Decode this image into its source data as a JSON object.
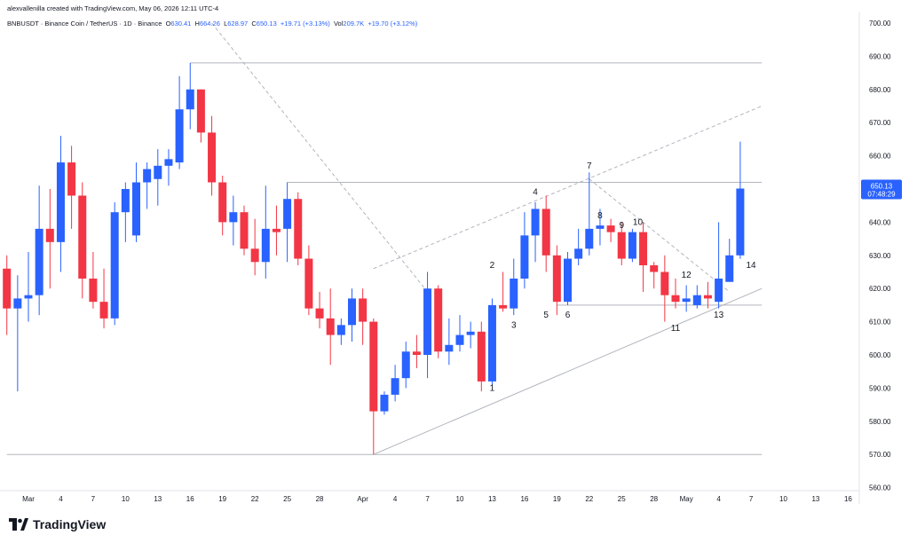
{
  "header": {
    "creator_text": "alexvallenilla created with TradingView.com, May 06, 2026 12:11 UTC-4",
    "symbol": "BNBUSDT · Binance Coin / TetherUS · 1D · Binance",
    "open_label": "O",
    "open_value": "630.41",
    "high_label": "H",
    "high_value": "664.26",
    "low_label": "L",
    "low_value": "628.97",
    "close_label": "C",
    "close_value": "650.13",
    "change": "+19.71 (+3.13%)",
    "vol_label": "Vol",
    "vol_value": "209.7K",
    "vol_change": "+19.70 (+3.12%)"
  },
  "footer": {
    "brand": "TradingView"
  },
  "colors": {
    "up": "#2962ff",
    "down": "#f23645",
    "price_tag": "#2962ff",
    "grid_line": "#b2b5be",
    "text": "#131722"
  },
  "chart_data": {
    "type": "candlestick",
    "y_axis": {
      "min": 560,
      "max": 700,
      "step": 10,
      "side": "right",
      "ticks": [
        "700.00",
        "690.00",
        "680.00",
        "670.00",
        "660.00",
        "650.00",
        "640.00",
        "630.00",
        "620.00",
        "610.00",
        "600.00",
        "590.00",
        "580.00",
        "570.00",
        "560.00"
      ]
    },
    "x_axis": {
      "ticks": [
        {
          "label": "Mar",
          "d": 0
        },
        {
          "label": "4",
          "d": 3
        },
        {
          "label": "7",
          "d": 6
        },
        {
          "label": "10",
          "d": 9
        },
        {
          "label": "13",
          "d": 12
        },
        {
          "label": "16",
          "d": 15
        },
        {
          "label": "19",
          "d": 18
        },
        {
          "label": "22",
          "d": 21
        },
        {
          "label": "25",
          "d": 24
        },
        {
          "label": "28",
          "d": 27
        },
        {
          "label": "Apr",
          "d": 31
        },
        {
          "label": "4",
          "d": 34
        },
        {
          "label": "7",
          "d": 37
        },
        {
          "label": "10",
          "d": 40
        },
        {
          "label": "13",
          "d": 43
        },
        {
          "label": "16",
          "d": 46
        },
        {
          "label": "19",
          "d": 49
        },
        {
          "label": "22",
          "d": 52
        },
        {
          "label": "25",
          "d": 55
        },
        {
          "label": "28",
          "d": 58
        },
        {
          "label": "May",
          "d": 61
        },
        {
          "label": "4",
          "d": 64
        },
        {
          "label": "7",
          "d": 67
        },
        {
          "label": "10",
          "d": 70
        },
        {
          "label": "13",
          "d": 73
        },
        {
          "label": "16",
          "d": 76
        }
      ]
    },
    "last_price": {
      "value": "650.13",
      "countdown": "07:48:29"
    },
    "candles": [
      {
        "d": -2,
        "o": 626,
        "h": 630,
        "l": 606,
        "c": 614
      },
      {
        "d": -1,
        "o": 614,
        "h": 624,
        "l": 589,
        "c": 617
      },
      {
        "d": 0,
        "o": 617,
        "h": 631,
        "l": 610,
        "c": 618
      },
      {
        "d": 1,
        "o": 618,
        "h": 651,
        "l": 612,
        "c": 638
      },
      {
        "d": 2,
        "o": 638,
        "h": 650,
        "l": 620,
        "c": 634
      },
      {
        "d": 3,
        "o": 634,
        "h": 666,
        "l": 625,
        "c": 658
      },
      {
        "d": 4,
        "o": 658,
        "h": 663,
        "l": 638,
        "c": 648
      },
      {
        "d": 5,
        "o": 648,
        "h": 652,
        "l": 617,
        "c": 623
      },
      {
        "d": 6,
        "o": 623,
        "h": 631,
        "l": 614,
        "c": 616
      },
      {
        "d": 7,
        "o": 616,
        "h": 626,
        "l": 608,
        "c": 611
      },
      {
        "d": 8,
        "o": 611,
        "h": 646,
        "l": 609,
        "c": 643
      },
      {
        "d": 9,
        "o": 643,
        "h": 652,
        "l": 634,
        "c": 650
      },
      {
        "d": 10,
        "o": 636,
        "h": 658,
        "l": 634,
        "c": 652
      },
      {
        "d": 11,
        "o": 652,
        "h": 658,
        "l": 644,
        "c": 656
      },
      {
        "d": 12,
        "o": 653,
        "h": 662,
        "l": 645,
        "c": 657
      },
      {
        "d": 13,
        "o": 657,
        "h": 662,
        "l": 651,
        "c": 659
      },
      {
        "d": 14,
        "o": 658,
        "h": 684,
        "l": 656,
        "c": 674
      },
      {
        "d": 15,
        "o": 674,
        "h": 688,
        "l": 668,
        "c": 680
      },
      {
        "d": 16,
        "o": 680,
        "h": 680,
        "l": 664,
        "c": 667
      },
      {
        "d": 17,
        "o": 667,
        "h": 672,
        "l": 648,
        "c": 652
      },
      {
        "d": 18,
        "o": 652,
        "h": 654,
        "l": 636,
        "c": 640
      },
      {
        "d": 19,
        "o": 640,
        "h": 648,
        "l": 633,
        "c": 643
      },
      {
        "d": 20,
        "o": 643,
        "h": 645,
        "l": 630,
        "c": 632
      },
      {
        "d": 21,
        "o": 632,
        "h": 641,
        "l": 624,
        "c": 628
      },
      {
        "d": 22,
        "o": 628,
        "h": 651,
        "l": 623,
        "c": 638
      },
      {
        "d": 23,
        "o": 638,
        "h": 645,
        "l": 630,
        "c": 637
      },
      {
        "d": 24,
        "o": 638,
        "h": 652,
        "l": 628,
        "c": 647
      },
      {
        "d": 25,
        "o": 647,
        "h": 649,
        "l": 627,
        "c": 629
      },
      {
        "d": 26,
        "o": 629,
        "h": 633,
        "l": 612,
        "c": 614
      },
      {
        "d": 27,
        "o": 614,
        "h": 619,
        "l": 608,
        "c": 611
      },
      {
        "d": 28,
        "o": 611,
        "h": 620,
        "l": 597,
        "c": 606
      },
      {
        "d": 29,
        "o": 606,
        "h": 611,
        "l": 603,
        "c": 609
      },
      {
        "d": 30,
        "o": 609,
        "h": 620,
        "l": 604,
        "c": 617
      },
      {
        "d": 31,
        "o": 617,
        "h": 620,
        "l": 603,
        "c": 610
      },
      {
        "d": 32,
        "o": 610,
        "h": 611,
        "l": 570,
        "c": 583
      },
      {
        "d": 33,
        "o": 583,
        "h": 589,
        "l": 582,
        "c": 588
      },
      {
        "d": 34,
        "o": 588,
        "h": 597,
        "l": 586,
        "c": 593
      },
      {
        "d": 35,
        "o": 593,
        "h": 604,
        "l": 590,
        "c": 601
      },
      {
        "d": 36,
        "o": 601,
        "h": 606,
        "l": 596,
        "c": 600
      },
      {
        "d": 37,
        "o": 600,
        "h": 625,
        "l": 593,
        "c": 620
      },
      {
        "d": 38,
        "o": 620,
        "h": 621,
        "l": 599,
        "c": 601
      },
      {
        "d": 39,
        "o": 601,
        "h": 611,
        "l": 597,
        "c": 603
      },
      {
        "d": 40,
        "o": 603,
        "h": 612,
        "l": 601,
        "c": 606
      },
      {
        "d": 41,
        "o": 606,
        "h": 610,
        "l": 602,
        "c": 607
      },
      {
        "d": 42,
        "o": 607,
        "h": 610,
        "l": 589,
        "c": 592
      },
      {
        "d": 43,
        "o": 592,
        "h": 617,
        "l": 591,
        "c": 615
      },
      {
        "d": 44,
        "o": 615,
        "h": 625,
        "l": 613,
        "c": 614
      },
      {
        "d": 45,
        "o": 614,
        "h": 629,
        "l": 612,
        "c": 623
      },
      {
        "d": 46,
        "o": 623,
        "h": 643,
        "l": 620,
        "c": 636
      },
      {
        "d": 47,
        "o": 636,
        "h": 646,
        "l": 628,
        "c": 644
      },
      {
        "d": 48,
        "o": 644,
        "h": 648,
        "l": 625,
        "c": 630
      },
      {
        "d": 49,
        "o": 630,
        "h": 633,
        "l": 612,
        "c": 616
      },
      {
        "d": 50,
        "o": 616,
        "h": 631,
        "l": 615,
        "c": 629
      },
      {
        "d": 51,
        "o": 629,
        "h": 638,
        "l": 627,
        "c": 632
      },
      {
        "d": 52,
        "o": 632,
        "h": 655,
        "l": 630,
        "c": 638
      },
      {
        "d": 53,
        "o": 638,
        "h": 644,
        "l": 633,
        "c": 639
      },
      {
        "d": 54,
        "o": 639,
        "h": 641,
        "l": 634,
        "c": 637
      },
      {
        "d": 55,
        "o": 637,
        "h": 640,
        "l": 627,
        "c": 629
      },
      {
        "d": 56,
        "o": 629,
        "h": 638,
        "l": 628,
        "c": 637
      },
      {
        "d": 57,
        "o": 637,
        "h": 640,
        "l": 619,
        "c": 627
      },
      {
        "d": 58,
        "o": 627,
        "h": 628,
        "l": 620,
        "c": 625
      },
      {
        "d": 59,
        "o": 625,
        "h": 630,
        "l": 610,
        "c": 618
      },
      {
        "d": 60,
        "o": 618,
        "h": 623,
        "l": 614,
        "c": 616
      },
      {
        "d": 61,
        "o": 616,
        "h": 621,
        "l": 613,
        "c": 617
      },
      {
        "d": 62,
        "o": 615,
        "h": 621,
        "l": 614,
        "c": 618
      },
      {
        "d": 63,
        "o": 618,
        "h": 622,
        "l": 614,
        "c": 617
      },
      {
        "d": 64,
        "o": 616,
        "h": 640,
        "l": 614,
        "c": 623
      },
      {
        "d": 65,
        "o": 622,
        "h": 635,
        "l": 622,
        "c": 630
      },
      {
        "d": 66,
        "o": 630,
        "h": 664.26,
        "l": 628.97,
        "c": 650.13
      }
    ],
    "annotations": [
      {
        "label": "1",
        "d": 43,
        "p": 590
      },
      {
        "label": "2",
        "d": 43,
        "p": 627
      },
      {
        "label": "3",
        "d": 45,
        "p": 609
      },
      {
        "label": "4",
        "d": 47,
        "p": 649
      },
      {
        "label": "5",
        "d": 48,
        "p": 612
      },
      {
        "label": "6",
        "d": 50,
        "p": 612
      },
      {
        "label": "7",
        "d": 52,
        "p": 657
      },
      {
        "label": "8",
        "d": 53,
        "p": 642
      },
      {
        "label": "9",
        "d": 55,
        "p": 639
      },
      {
        "label": "10",
        "d": 56.5,
        "p": 640
      },
      {
        "label": "11",
        "d": 60,
        "p": 608
      },
      {
        "label": "12",
        "d": 61,
        "p": 624
      },
      {
        "label": "13",
        "d": 64,
        "p": 612
      },
      {
        "label": "14",
        "d": 67,
        "p": 627
      }
    ],
    "drawings": [
      {
        "kind": "hline",
        "p": 688,
        "from": 15,
        "to": 68
      },
      {
        "kind": "hline",
        "p": 652,
        "from": 24,
        "to": 68
      },
      {
        "kind": "hline",
        "p": 615,
        "from": 49,
        "to": 68
      },
      {
        "kind": "hline",
        "p": 570,
        "from": -2,
        "to": 68
      },
      {
        "kind": "segment",
        "d1": 32,
        "p1": 570,
        "d2": 68,
        "p2": 620,
        "dashed": false
      },
      {
        "kind": "segment",
        "d1": 32,
        "p1": 626,
        "d2": 68,
        "p2": 675,
        "dashed": true
      },
      {
        "kind": "segment",
        "d1": 17,
        "p1": 700,
        "d2": 37,
        "p2": 619,
        "dashed": true
      },
      {
        "kind": "segment",
        "d1": 52,
        "p1": 653,
        "d2": 65,
        "p2": 619,
        "dashed": true
      }
    ]
  }
}
